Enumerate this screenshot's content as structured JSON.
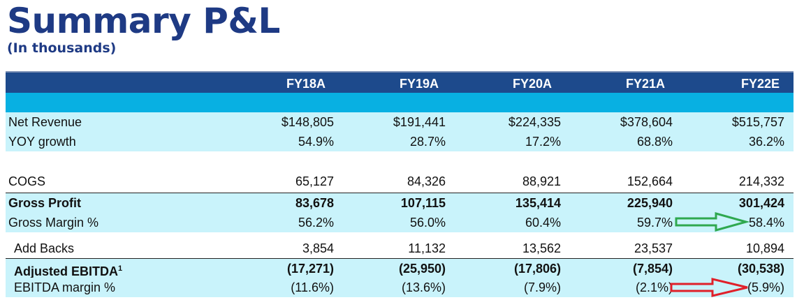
{
  "title": "Summary P&L",
  "subtitle": "(In thousands)",
  "columns": [
    "FY18A",
    "FY19A",
    "FY20A",
    "FY21A",
    "FY22E"
  ],
  "rows": [
    {
      "label": "Net Revenue",
      "values": [
        "$148,805",
        "$191,441",
        "$224,335",
        "$378,604",
        "$515,757"
      ]
    },
    {
      "label": "YOY growth",
      "values": [
        "54.9%",
        "28.7%",
        "17.2%",
        "68.8%",
        "36.2%"
      ]
    },
    {
      "label": "COGS",
      "values": [
        "65,127",
        "84,326",
        "88,921",
        "152,664",
        "214,332"
      ]
    },
    {
      "label": "Gross Profit",
      "values": [
        "83,678",
        "107,115",
        "135,414",
        "225,940",
        "301,424"
      ]
    },
    {
      "label": "Gross Margin %",
      "values": [
        "56.2%",
        "56.0%",
        "60.4%",
        "59.7%",
        "58.4%"
      ]
    },
    {
      "label": "Add Backs",
      "values": [
        "3,854",
        "11,132",
        "13,562",
        "23,537",
        "10,894"
      ]
    },
    {
      "label": "Adjusted EBITDA",
      "label_sup": "1",
      "values": [
        "(17,271)",
        "(25,950)",
        "(17,806)",
        "(7,854)",
        "(30,538)"
      ]
    },
    {
      "label": "EBITDA margin %",
      "values": [
        "(11.6%)",
        "(13.6%)",
        "(7.9%)",
        "(2.1%)",
        "(5.9%)"
      ]
    }
  ],
  "colors": {
    "title": "#1e3a84",
    "header_band": "#1d4a8c",
    "teal_band": "#08b0e2",
    "row_fill": "#c9f3fb",
    "green_arrow": "#2fa84f",
    "red_arrow": "#e0202a"
  },
  "annotations": [
    {
      "icon": "green-arrow-icon",
      "points_to": "Gross Margin % FY22E"
    },
    {
      "icon": "red-arrow-icon",
      "points_to": "EBITDA margin % FY22E"
    }
  ]
}
